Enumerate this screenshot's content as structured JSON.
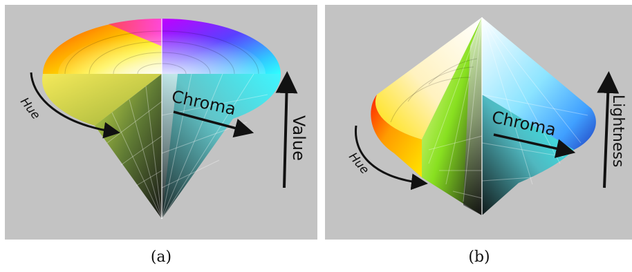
{
  "panel_a": {
    "caption": "(a)",
    "labels": {
      "hue": "Hue",
      "chroma": "Chroma",
      "axis": "Value"
    }
  },
  "panel_b": {
    "caption": "(b)",
    "labels": {
      "hue": "Hue",
      "chroma": "Chroma",
      "axis": "Lightness"
    }
  },
  "colors": {
    "background_panel": "#c3c3c3",
    "arrow": "#111111"
  }
}
